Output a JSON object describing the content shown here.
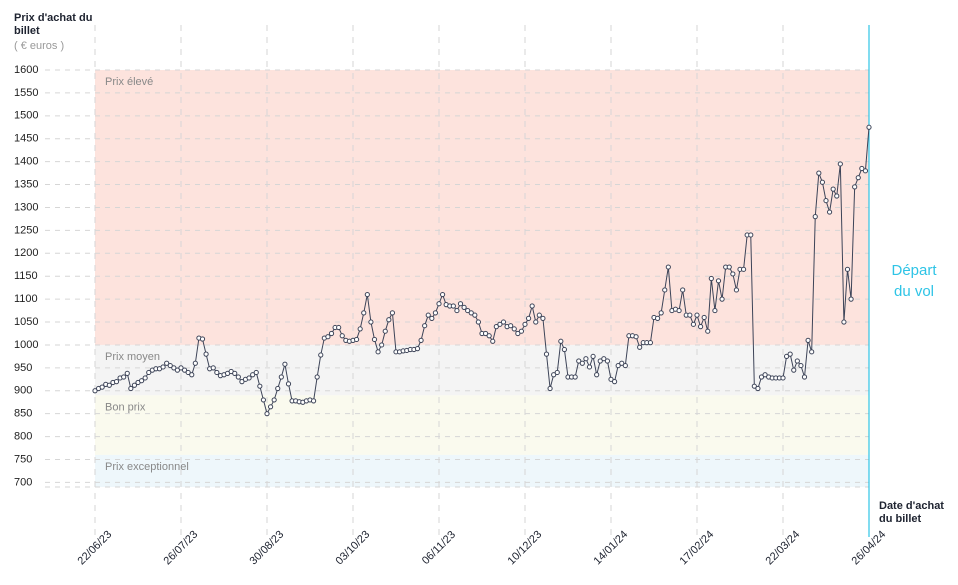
{
  "chart_data": {
    "type": "line",
    "y_title": "Prix d'achat du billet",
    "y_unit": "( € euros )",
    "x_title": "Date d'achat du billet",
    "annotation": "Départ du vol",
    "color": "#3d4458",
    "ylim": [
      690,
      1600
    ],
    "yticks": [
      700,
      750,
      800,
      850,
      900,
      950,
      1000,
      1050,
      1100,
      1150,
      1200,
      1250,
      1300,
      1350,
      1400,
      1450,
      1500,
      1550,
      1600
    ],
    "grid": true,
    "bands": [
      {
        "label": "Prix élevé",
        "from": 1000,
        "to": 1600,
        "color": "#fde3dd"
      },
      {
        "label": "Prix moyen",
        "from": 890,
        "to": 1000,
        "color": "#f4f4f4"
      },
      {
        "label": "Bon prix",
        "from": 760,
        "to": 890,
        "color": "#fafaee"
      },
      {
        "label": "Prix exceptionnel",
        "from": 690,
        "to": 760,
        "color": "#eef7fb"
      }
    ],
    "categories": [
      "22/06/23",
      null,
      null,
      null,
      null,
      null,
      null,
      null,
      null,
      null,
      null,
      null,
      null,
      null,
      null,
      null,
      null,
      null,
      null,
      null,
      null,
      null,
      null,
      null,
      "26/07/23",
      null,
      null,
      null,
      null,
      null,
      null,
      null,
      null,
      null,
      null,
      null,
      null,
      null,
      null,
      null,
      null,
      null,
      null,
      null,
      null,
      null,
      null,
      null,
      "30/08/23",
      null,
      null,
      null,
      null,
      null,
      null,
      null,
      null,
      null,
      null,
      null,
      null,
      null,
      null,
      null,
      null,
      null,
      null,
      null,
      null,
      null,
      null,
      null,
      "03/10/23",
      null,
      null,
      null,
      null,
      null,
      null,
      null,
      null,
      null,
      null,
      null,
      null,
      null,
      null,
      null,
      null,
      null,
      null,
      null,
      null,
      null,
      null,
      null,
      "06/11/23",
      null,
      null,
      null,
      null,
      null,
      null,
      null,
      null,
      null,
      null,
      null,
      null,
      null,
      null,
      null,
      null,
      null,
      null,
      null,
      null,
      null,
      null,
      null,
      "10/12/23",
      null,
      null,
      null,
      null,
      null,
      null,
      null,
      null,
      null,
      null,
      null,
      null,
      null,
      null,
      null,
      null,
      null,
      null,
      null,
      null,
      null,
      null,
      null,
      "14/01/24",
      null,
      null,
      null,
      null,
      null,
      null,
      null,
      null,
      null,
      null,
      null,
      null,
      null,
      null,
      null,
      null,
      null,
      null,
      null,
      null,
      null,
      null,
      null,
      "17/02/24",
      null,
      null,
      null,
      null,
      null,
      null,
      null,
      null,
      null,
      null,
      null,
      null,
      null,
      null,
      null,
      null,
      null,
      null,
      null,
      null,
      null,
      null,
      null,
      "22/03/24",
      null,
      null,
      null,
      null,
      null,
      null,
      null,
      null,
      null,
      null,
      null,
      null,
      null,
      null,
      null,
      null,
      null,
      null,
      null,
      null,
      null,
      null,
      null,
      "26/04/24"
    ],
    "values": [
      900,
      905,
      908,
      914,
      912,
      918,
      920,
      928,
      930,
      938,
      905,
      912,
      918,
      922,
      928,
      940,
      945,
      948,
      948,
      952,
      960,
      955,
      950,
      945,
      950,
      945,
      940,
      935,
      960,
      1015,
      1013,
      980,
      948,
      950,
      940,
      933,
      935,
      938,
      942,
      938,
      930,
      920,
      925,
      928,
      935,
      940,
      910,
      880,
      850,
      865,
      880,
      905,
      930,
      958,
      915,
      878,
      878,
      876,
      875,
      878,
      880,
      878,
      930,
      978,
      1015,
      1018,
      1025,
      1038,
      1038,
      1020,
      1010,
      1008,
      1010,
      1012,
      1035,
      1070,
      1110,
      1050,
      1012,
      985,
      1000,
      1030,
      1055,
      1070,
      985,
      985,
      987,
      988,
      990,
      990,
      992,
      1010,
      1042,
      1065,
      1058,
      1070,
      1090,
      1110,
      1088,
      1085,
      1085,
      1075,
      1090,
      1082,
      1075,
      1070,
      1065,
      1050,
      1025,
      1025,
      1020,
      1008,
      1040,
      1045,
      1050,
      1040,
      1042,
      1035,
      1025,
      1030,
      1045,
      1058,
      1085,
      1050,
      1065,
      1058,
      980,
      905,
      935,
      940,
      1008,
      990,
      930,
      930,
      930,
      965,
      960,
      970,
      952,
      975,
      935,
      965,
      970,
      965,
      925,
      920,
      955,
      960,
      955,
      1020,
      1020,
      1018,
      995,
      1005,
      1005,
      1005,
      1060,
      1058,
      1070,
      1120,
      1170,
      1075,
      1078,
      1075,
      1120,
      1065,
      1065,
      1045,
      1065,
      1040,
      1060,
      1030,
      1145,
      1075,
      1140,
      1100,
      1170,
      1170,
      1155,
      1120,
      1165,
      1165,
      1240,
      1240,
      910,
      905,
      930,
      935,
      930,
      928,
      928,
      928,
      928,
      975,
      980,
      945,
      965,
      955,
      930,
      1010,
      985,
      1280,
      1375,
      1355,
      1315,
      1290,
      1340,
      1325,
      1395,
      1050,
      1165,
      1100,
      1345,
      1365,
      1385,
      1380,
      1475
    ]
  }
}
